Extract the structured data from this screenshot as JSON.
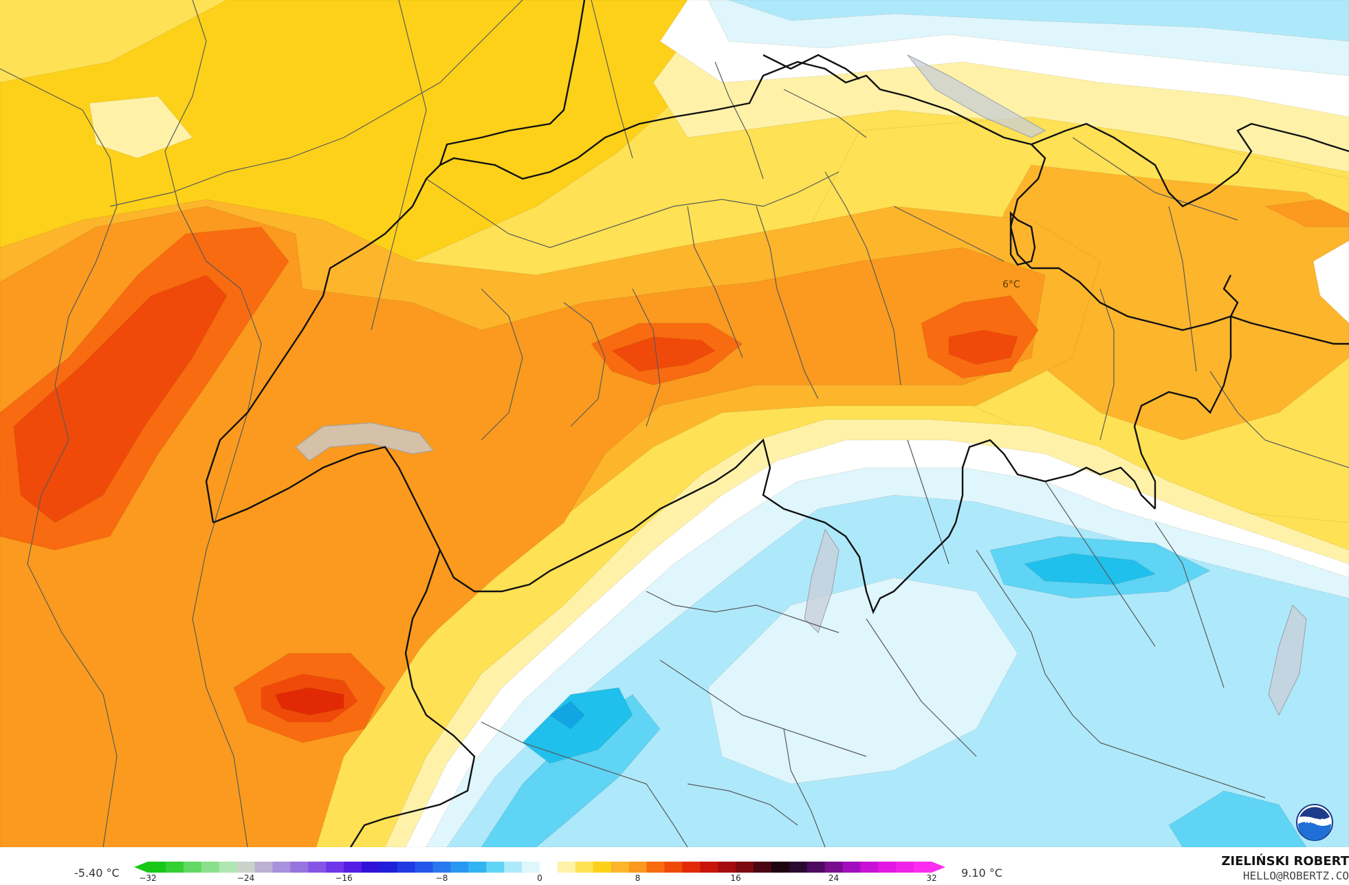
{
  "map": {
    "point_label": "6°C",
    "colors": {
      "dark_orange": "#f04a0a",
      "orange_red": "#f96b10",
      "orange": "#fb9a1e",
      "amber": "#fdb52c",
      "gold": "#fdd119",
      "yellow": "#fee154",
      "pale_yellow": "#fff2a8",
      "white": "#ffffff",
      "ice": "#dff6fd",
      "light_blue": "#aee9fb",
      "sky_blue": "#5fd4f5",
      "blue": "#20c0ec",
      "deep_blue": "#11a6e3"
    }
  },
  "legend": {
    "min_label": "-5.40 °C",
    "max_label": "9.10 °C",
    "ticks": [
      "−32",
      "−24",
      "−16",
      "−8",
      "0",
      "8",
      "16",
      "24",
      "32"
    ],
    "scale_min": -32,
    "scale_max": 32,
    "step": 2,
    "colors": [
      "#19c719",
      "#33cf33",
      "#63d863",
      "#8be08b",
      "#b0e6b0",
      "#c9d3c9",
      "#bcb1d0",
      "#a891dd",
      "#9774e0",
      "#8555e6",
      "#7037e9",
      "#541ee4",
      "#2f12d8",
      "#1f1ed8",
      "#1f3ae2",
      "#2458ea",
      "#2a78f0",
      "#2a98f2",
      "#33b4f2",
      "#5fd4f5",
      "#aee9fb",
      "#dff6fd",
      "#ffffff",
      "#fff2a8",
      "#fee154",
      "#fdd119",
      "#fdb52c",
      "#fb9a1e",
      "#f96b10",
      "#f04a0a",
      "#e12a05",
      "#c9140a",
      "#a50c10",
      "#7c0a10",
      "#4a0612",
      "#1e0410",
      "#2a0a30",
      "#4d0a5e",
      "#7a0c8e",
      "#a10ebe",
      "#c912d8",
      "#e218e5",
      "#f023e8",
      "#fb2ef0"
    ]
  },
  "credit": {
    "author": "ZIELIŃSKI ROBERT",
    "email": "HELLO@ROBERTZ.CO"
  },
  "logo_text": "NOAA"
}
